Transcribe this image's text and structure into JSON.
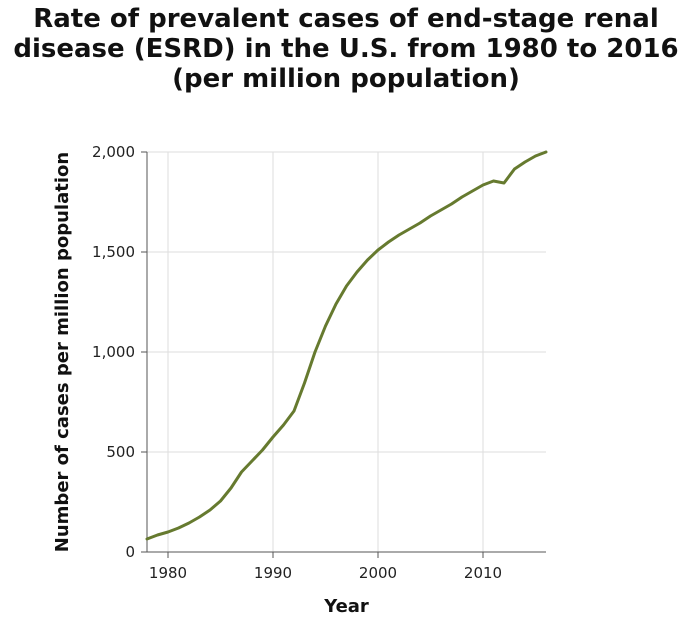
{
  "title_lines": [
    "Rate of prevalent cases of end-stage renal",
    "disease (ESRD) in the U.S. from 1980 to 2016",
    "(per million population)"
  ],
  "chart_data": {
    "type": "line",
    "title": "Rate of prevalent cases of end-stage renal disease (ESRD) in the U.S. from 1980 to 2016 (per million population)",
    "xlabel": "Year",
    "ylabel": "Number of cases per million population",
    "xlim": [
      1978,
      2016
    ],
    "ylim": [
      0,
      2000
    ],
    "x_ticks": [
      1980,
      1990,
      2000,
      2010
    ],
    "x_tick_labels": [
      "1980",
      "1990",
      "2000",
      "2010"
    ],
    "y_ticks": [
      0,
      500,
      1000,
      1500,
      2000
    ],
    "y_tick_labels": [
      "0",
      "500",
      "1,000",
      "1,500",
      "2,000"
    ],
    "grid": true,
    "line_color": "#667a2f",
    "series": [
      {
        "x": [
          1978,
          1979,
          1980,
          1981,
          1982,
          1983,
          1984,
          1985,
          1986,
          1987,
          1988,
          1989,
          1990,
          1991,
          1992,
          1993,
          1994,
          1995,
          1996,
          1997,
          1998,
          1999,
          2000,
          2001,
          2002,
          2003,
          2004,
          2005,
          2006,
          2007,
          2008,
          2009,
          2010,
          2011,
          2012,
          2013,
          2014,
          2015,
          2016
        ],
        "y": [
          65,
          85,
          100,
          120,
          145,
          175,
          210,
          255,
          320,
          400,
          455,
          510,
          575,
          635,
          705,
          845,
          1000,
          1130,
          1240,
          1330,
          1400,
          1460,
          1510,
          1550,
          1585,
          1615,
          1645,
          1680,
          1710,
          1740,
          1775,
          1805,
          1835,
          1855,
          1845,
          1915,
          1950,
          1980,
          2000
        ]
      }
    ]
  }
}
